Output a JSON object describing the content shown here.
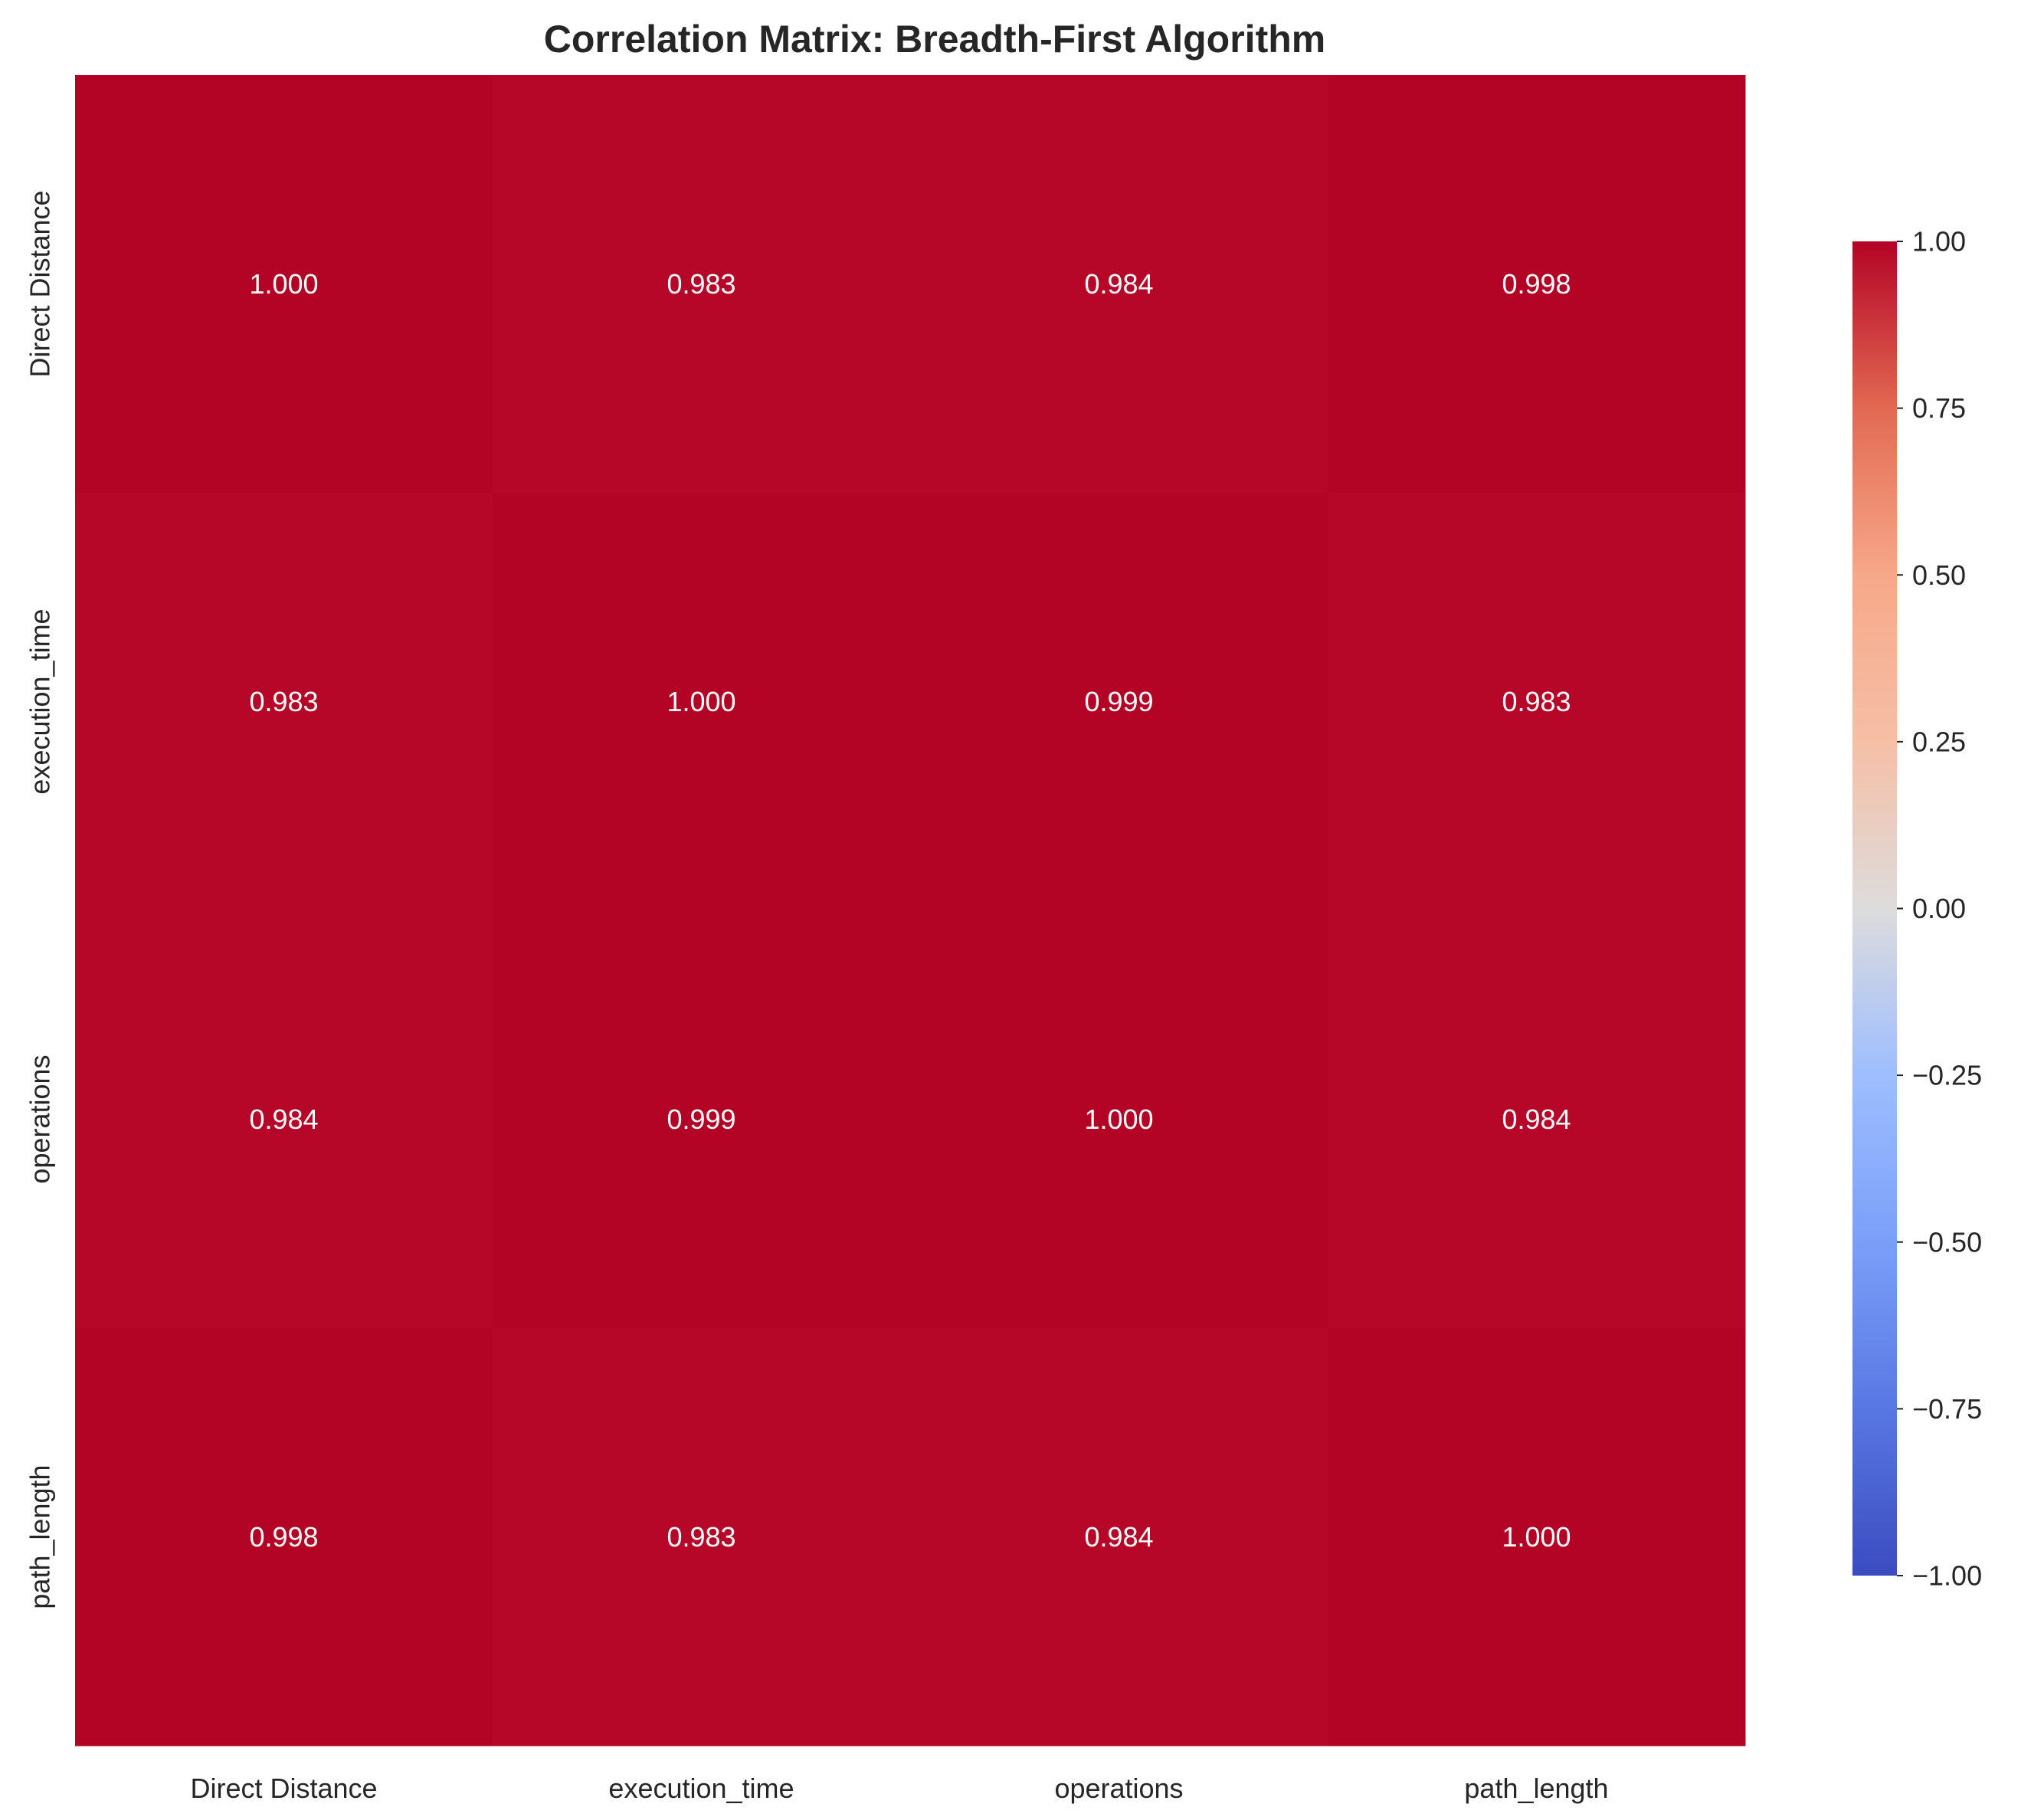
{
  "chart_data": {
    "type": "heatmap",
    "title": "Correlation Matrix: Breadth-First Algorithm",
    "xlabel": "",
    "ylabel": "",
    "x_categories": [
      "Direct Distance",
      "execution_time",
      "operations",
      "path_length"
    ],
    "y_categories": [
      "Direct Distance",
      "execution_time",
      "operations",
      "path_length"
    ],
    "values": [
      [
        1.0,
        0.983,
        0.984,
        0.998
      ],
      [
        0.983,
        1.0,
        0.999,
        0.983
      ],
      [
        0.984,
        0.999,
        1.0,
        0.984
      ],
      [
        0.998,
        0.983,
        0.984,
        1.0
      ]
    ],
    "value_format": "0.000",
    "colormap": "coolwarm",
    "colorbar": {
      "vmin": -1.0,
      "vmax": 1.0,
      "ticks": [
        1.0,
        0.75,
        0.5,
        0.25,
        0.0,
        -0.25,
        -0.5,
        -0.75,
        -1.0
      ],
      "tick_labels": [
        "1.00",
        "0.75",
        "0.50",
        "0.25",
        "0.00",
        "−0.25",
        "−0.50",
        "−0.75",
        "−1.00"
      ]
    },
    "grid": false,
    "annotation_color": "#ffffff"
  }
}
